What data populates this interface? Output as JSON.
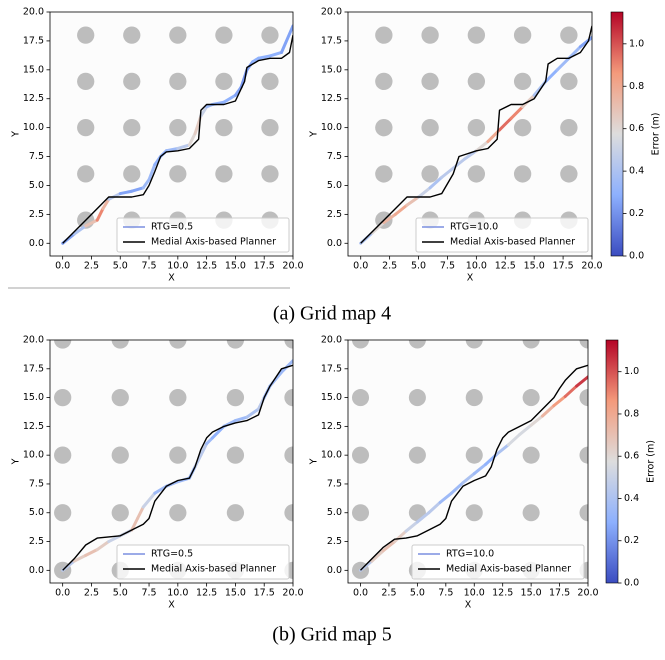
{
  "captions": [
    "(a) Grid map 4",
    "(b) Grid map 5"
  ],
  "chart_data": [
    {
      "type": "line",
      "x_label": "X",
      "y_label": "Y",
      "xlim": [
        -1.1,
        20
      ],
      "ylim": [
        -1.1,
        20
      ],
      "xticks": [
        {
          "value": 0,
          "label": "0.0"
        },
        2.5,
        {
          "value": 5,
          "label": "5.0"
        },
        7.5,
        {
          "value": 10,
          "label": "10.0"
        },
        12.5,
        {
          "value": 15,
          "label": "15.0"
        },
        17.5,
        {
          "value": 20,
          "label": "20.0"
        }
      ],
      "yticks": [
        {
          "value": 0,
          "label": "0.0"
        },
        2.5,
        {
          "value": 5,
          "label": "5.0"
        },
        7.5,
        {
          "value": 10,
          "label": "10.0"
        },
        12.5,
        {
          "value": 15,
          "label": "15.0"
        },
        17.5,
        {
          "value": 20,
          "label": "20.0"
        }
      ],
      "obstacle_x": [
        2,
        6,
        10,
        14,
        18
      ],
      "obstacle_y": [
        2,
        6,
        10,
        14,
        18
      ],
      "obstacle_radius": 0.75,
      "obstacle_color": "#bdbdbd",
      "legend": "lower right",
      "error_lim": [
        0,
        1.15
      ],
      "colormap": [
        "#3b4cc0",
        "#8db0fe",
        "#dddddd",
        "#f49a7b",
        "#b40426"
      ],
      "series": [
        {
          "name": "RTG=0.5",
          "color": "#7b8fe0",
          "x": [
            0,
            1,
            2,
            3,
            3.5,
            4,
            5,
            6,
            7,
            7.5,
            8,
            8.5,
            9,
            10,
            11,
            11.5,
            12,
            12.5,
            13,
            14,
            15,
            15.5,
            16,
            16.5,
            17,
            18,
            19,
            20
          ],
          "values": [
            0,
            0.8,
            1.5,
            2,
            3,
            3.8,
            4.3,
            4.5,
            4.8,
            5.5,
            6.8,
            7.5,
            8,
            8.2,
            8.5,
            9.5,
            11,
            11.8,
            12,
            12.2,
            12.8,
            13.5,
            15,
            15.7,
            16,
            16.2,
            16.5,
            18.8
          ],
          "error": [
            0.2,
            0.3,
            0.5,
            0.9,
            0.9,
            0.6,
            0.3,
            0.2,
            0.3,
            0.4,
            0.3,
            0.3,
            0.3,
            0.4,
            0.5,
            0.7,
            0.6,
            0.4,
            0.3,
            0.3,
            0.3,
            0.2,
            0.2,
            0.3,
            0.3,
            0.3,
            0.3,
            0.2
          ]
        },
        {
          "name": "Medial Axis-based Planner",
          "color": "#000000",
          "x": [
            0,
            1,
            2,
            3,
            4,
            5,
            6,
            7,
            7.5,
            8,
            8.5,
            9,
            10,
            11,
            11.8,
            12,
            12.5,
            14,
            15,
            15.8,
            16,
            17,
            18,
            19,
            19.7,
            20
          ],
          "values": [
            0,
            1,
            2,
            3,
            4,
            4,
            4,
            4.2,
            5,
            6.2,
            7.5,
            7.9,
            8,
            8.2,
            9,
            11.5,
            12,
            12,
            12.3,
            14,
            15.2,
            15.8,
            16,
            16,
            16.5,
            18
          ]
        }
      ]
    },
    {
      "type": "line",
      "x_label": "X",
      "y_label": "Y",
      "xlim": [
        -1.1,
        20
      ],
      "ylim": [
        -1.1,
        20
      ],
      "xticks": [
        {
          "value": 0,
          "label": "0.0"
        },
        2.5,
        {
          "value": 5,
          "label": "5.0"
        },
        7.5,
        {
          "value": 10,
          "label": "10.0"
        },
        12.5,
        {
          "value": 15,
          "label": "15.0"
        },
        17.5,
        {
          "value": 20,
          "label": "20.0"
        }
      ],
      "yticks": [
        {
          "value": 0,
          "label": "0.0"
        },
        2.5,
        {
          "value": 5,
          "label": "5.0"
        },
        7.5,
        {
          "value": 10,
          "label": "10.0"
        },
        12.5,
        {
          "value": 15,
          "label": "15.0"
        },
        17.5,
        {
          "value": 20,
          "label": "20.0"
        }
      ],
      "obstacle_x": [
        2,
        6,
        10,
        14,
        18
      ],
      "obstacle_y": [
        2,
        6,
        10,
        14,
        18
      ],
      "obstacle_radius": 0.75,
      "obstacle_color": "#bdbdbd",
      "legend": "lower right",
      "error_lim": [
        0,
        1.15
      ],
      "colormap": [
        "#3b4cc0",
        "#8db0fe",
        "#dddddd",
        "#f49a7b",
        "#b40426"
      ],
      "colorbar": {
        "label": "Error (m)",
        "ticks": [
          {
            "value": 0,
            "label": "0.0"
          },
          0.2,
          0.4,
          0.6,
          0.8,
          {
            "value": 1,
            "label": "1.0"
          }
        ]
      },
      "series": [
        {
          "name": "RTG=10.0",
          "color": "#7b8fe0",
          "x": [
            0,
            1,
            2,
            3,
            4,
            5,
            6,
            7,
            8,
            9,
            10,
            11,
            12,
            13,
            14,
            15,
            16,
            17,
            18,
            19,
            20
          ],
          "values": [
            0,
            0.9,
            1.8,
            2.5,
            3.3,
            4,
            4.8,
            5.7,
            6.5,
            7.3,
            8,
            8.8,
            9.8,
            10.8,
            11.8,
            12.8,
            14,
            15,
            16,
            17,
            17.8
          ],
          "error": [
            0.3,
            0.5,
            0.7,
            0.8,
            0.8,
            0.6,
            0.4,
            0.4,
            0.5,
            0.4,
            0.5,
            0.7,
            0.9,
            1.0,
            0.8,
            0.5,
            0.3,
            0.3,
            0.4,
            0.3,
            0.2
          ]
        },
        {
          "name": "Medial Axis-based Planner",
          "color": "#000000",
          "x": [
            0,
            2,
            4,
            6,
            7,
            8,
            8.5,
            10,
            11,
            11.8,
            12,
            13,
            14,
            15,
            16,
            16.2,
            17,
            18,
            19,
            19.7,
            20
          ],
          "values": [
            0,
            2,
            4,
            4,
            4.3,
            6,
            7.5,
            8,
            8.2,
            9,
            11.5,
            12,
            12,
            12.5,
            14,
            15.5,
            16,
            16,
            16.5,
            17.5,
            18.8
          ]
        }
      ]
    },
    {
      "type": "line",
      "x_label": "X",
      "y_label": "Y",
      "xlim": [
        -1.1,
        20
      ],
      "ylim": [
        -1.1,
        20
      ],
      "xticks": [
        {
          "value": 0,
          "label": "0.0"
        },
        2.5,
        {
          "value": 5,
          "label": "5.0"
        },
        7.5,
        {
          "value": 10,
          "label": "10.0"
        },
        12.5,
        {
          "value": 15,
          "label": "15.0"
        },
        17.5,
        {
          "value": 20,
          "label": "20.0"
        }
      ],
      "yticks": [
        {
          "value": 0,
          "label": "0.0"
        },
        2.5,
        {
          "value": 5,
          "label": "5.0"
        },
        7.5,
        {
          "value": 10,
          "label": "10.0"
        },
        12.5,
        {
          "value": 15,
          "label": "15.0"
        },
        17.5,
        {
          "value": 20,
          "label": "20.0"
        }
      ],
      "obstacle_x": [
        0,
        5,
        10,
        15,
        20
      ],
      "obstacle_y": [
        0,
        5,
        10,
        15,
        20
      ],
      "obstacle_radius": 0.75,
      "obstacle_color": "#bdbdbd",
      "legend": "lower right",
      "error_lim": [
        0,
        1.15
      ],
      "colormap": [
        "#3b4cc0",
        "#8db0fe",
        "#dddddd",
        "#f49a7b",
        "#b40426"
      ],
      "series": [
        {
          "name": "RTG=0.5",
          "color": "#7b8fe0",
          "x": [
            0,
            1,
            2,
            3,
            4,
            5,
            6,
            6.5,
            7,
            8,
            9,
            10,
            11,
            11.5,
            12,
            12.5,
            13,
            14,
            15,
            16,
            17,
            17.5,
            18,
            19,
            20
          ],
          "values": [
            0,
            0.8,
            1.3,
            1.8,
            2.5,
            3,
            3.5,
            4.5,
            5.5,
            6.7,
            7.3,
            7.7,
            8,
            9,
            10,
            11,
            11.5,
            12.5,
            13,
            13.3,
            14,
            15,
            16,
            17.2,
            18.2
          ],
          "error": [
            0.3,
            0.6,
            0.7,
            0.7,
            0.6,
            0.4,
            0.6,
            0.8,
            0.6,
            0.4,
            0.3,
            0.4,
            0.3,
            0.4,
            0.5,
            0.4,
            0.3,
            0.3,
            0.4,
            0.3,
            0.5,
            0.4,
            0.3,
            0.4,
            0.3
          ]
        },
        {
          "name": "Medial Axis-based Planner",
          "color": "#000000",
          "x": [
            0,
            1,
            2,
            3,
            4,
            5,
            6,
            7,
            7.5,
            8,
            9,
            10,
            11,
            11.5,
            12,
            12.5,
            13,
            14,
            15,
            16,
            17,
            17.5,
            18,
            19,
            20
          ],
          "values": [
            0,
            1,
            2.2,
            2.8,
            2.9,
            3,
            3.5,
            4,
            4.5,
            6,
            7.3,
            7.8,
            8,
            9,
            10.5,
            11.5,
            12,
            12.5,
            12.8,
            13,
            13.5,
            15,
            16,
            17.5,
            17.8
          ]
        }
      ]
    },
    {
      "type": "line",
      "x_label": "X",
      "y_label": "Y",
      "xlim": [
        -1.1,
        20
      ],
      "ylim": [
        -1.1,
        20
      ],
      "xticks": [
        {
          "value": 0,
          "label": "0.0"
        },
        2.5,
        {
          "value": 5,
          "label": "5.0"
        },
        7.5,
        {
          "value": 10,
          "label": "10.0"
        },
        12.5,
        {
          "value": 15,
          "label": "15.0"
        },
        17.5,
        {
          "value": 20,
          "label": "20.0"
        }
      ],
      "yticks": [
        {
          "value": 0,
          "label": "0.0"
        },
        2.5,
        {
          "value": 5,
          "label": "5.0"
        },
        7.5,
        {
          "value": 10,
          "label": "10.0"
        },
        12.5,
        {
          "value": 15,
          "label": "15.0"
        },
        17.5,
        {
          "value": 20,
          "label": "20.0"
        }
      ],
      "obstacle_x": [
        0,
        5,
        10,
        15,
        20
      ],
      "obstacle_y": [
        0,
        5,
        10,
        15,
        20
      ],
      "obstacle_radius": 0.75,
      "obstacle_color": "#bdbdbd",
      "legend": "lower right",
      "error_lim": [
        0,
        1.15
      ],
      "colormap": [
        "#3b4cc0",
        "#8db0fe",
        "#dddddd",
        "#f49a7b",
        "#b40426"
      ],
      "colorbar": {
        "label": "Error (m)",
        "ticks": [
          {
            "value": 0,
            "label": "0.0"
          },
          0.2,
          0.4,
          0.6,
          0.8,
          {
            "value": 1,
            "label": "1.0"
          }
        ]
      },
      "series": [
        {
          "name": "RTG=10.0",
          "color": "#7b8fe0",
          "x": [
            0,
            1,
            2,
            3,
            4,
            5,
            6,
            7,
            8,
            9,
            10,
            11,
            12,
            13,
            14,
            15,
            16,
            17,
            18,
            19,
            20
          ],
          "values": [
            0,
            0.8,
            1.7,
            2.5,
            3.4,
            4.2,
            5,
            5.9,
            6.7,
            7.6,
            8.4,
            9.2,
            10.1,
            10.9,
            11.8,
            12.6,
            13.4,
            14.3,
            15.1,
            16,
            16.8
          ],
          "error": [
            0.3,
            0.6,
            0.7,
            0.7,
            0.6,
            0.4,
            0.5,
            0.4,
            0.3,
            0.4,
            0.4,
            0.3,
            0.3,
            0.5,
            0.6,
            0.5,
            0.7,
            0.8,
            0.9,
            1.0,
            1.1
          ]
        },
        {
          "name": "Medial Axis-based Planner",
          "color": "#000000",
          "x": [
            0,
            1,
            2,
            3,
            4,
            5,
            6,
            7,
            7.5,
            8,
            9,
            10,
            11,
            11.5,
            12,
            12.5,
            13,
            14,
            15,
            16,
            17,
            17.5,
            18,
            19,
            20
          ],
          "values": [
            0,
            1,
            2,
            2.7,
            2.8,
            3,
            3.5,
            4,
            4.5,
            6,
            7.3,
            7.8,
            8.2,
            9,
            10.5,
            11.5,
            12,
            12.5,
            13,
            14,
            15,
            15.8,
            16.5,
            17.5,
            17.8
          ]
        }
      ]
    }
  ]
}
